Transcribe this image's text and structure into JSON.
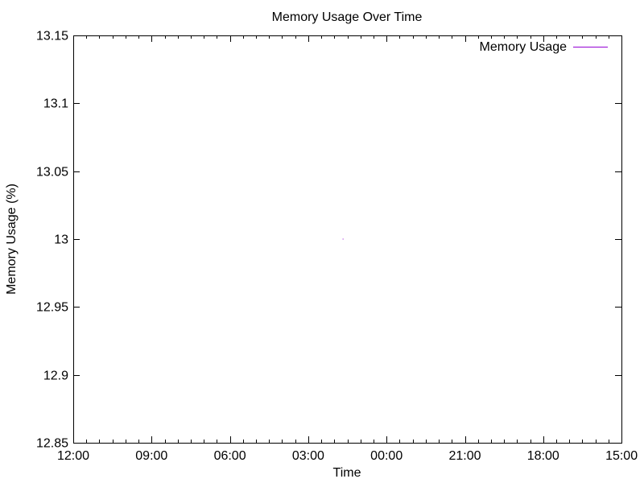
{
  "chart_data": {
    "type": "line",
    "title": "Memory Usage Over Time",
    "xlabel": "Time",
    "ylabel": "Memory Usage (%)",
    "ylim": [
      12.85,
      13.15
    ],
    "yticks": [
      "12.85",
      "12.9",
      "12.95",
      "13",
      "13.05",
      "13.1",
      "13.15"
    ],
    "xticks": [
      "12:00",
      "09:00",
      "06:00",
      "03:00",
      "00:00",
      "21:00",
      "18:00",
      "15:00"
    ],
    "grid": false,
    "legend_position": "top-right",
    "series": [
      {
        "name": "Memory Usage",
        "color": "#9400d3",
        "points": [
          {
            "x": "01:40",
            "y": 13.0
          }
        ]
      }
    ]
  }
}
